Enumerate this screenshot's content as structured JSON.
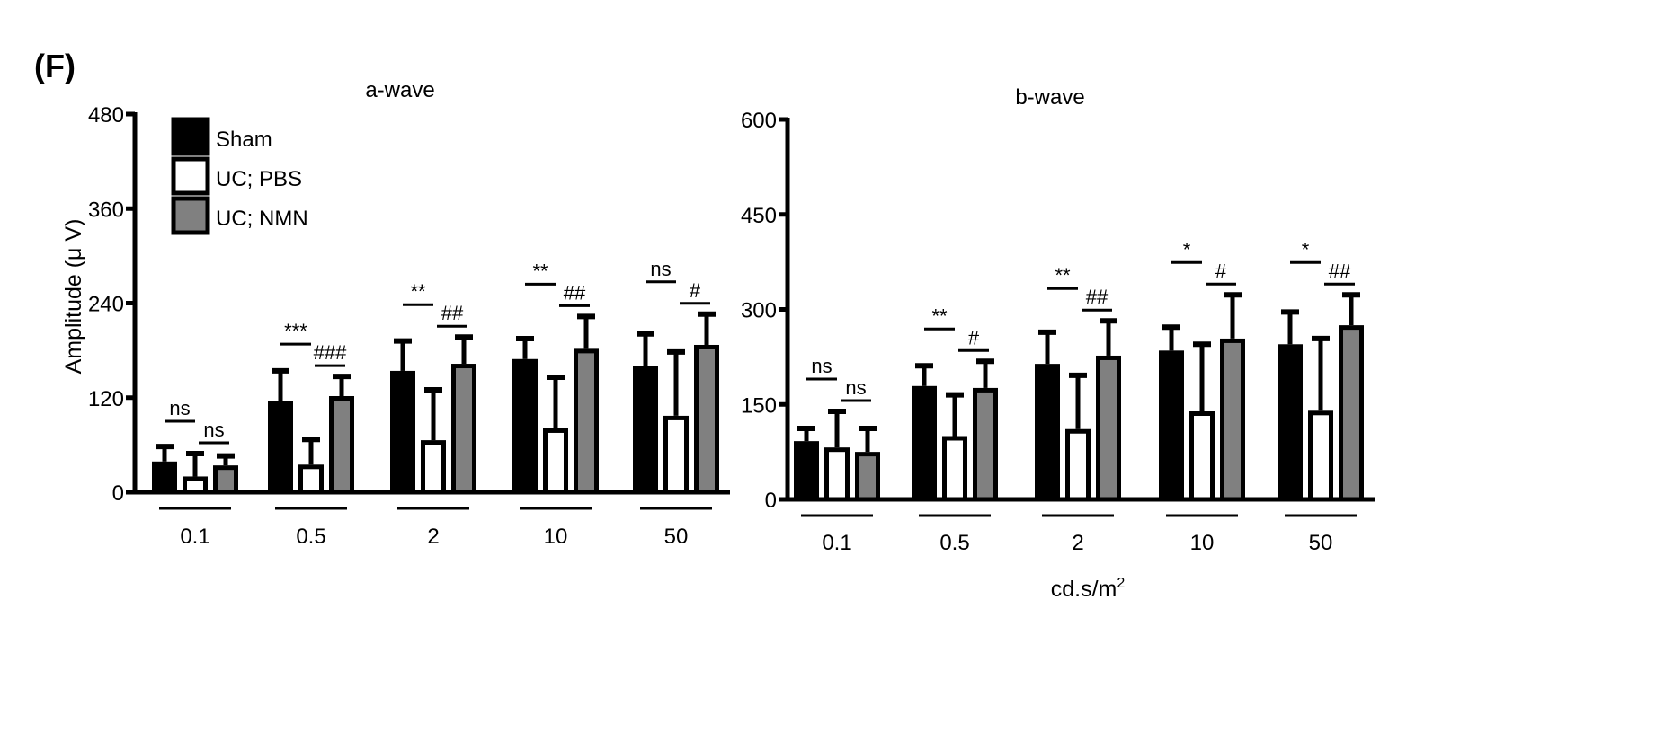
{
  "panel_label": "(F)",
  "legend": [
    {
      "name": "Sham",
      "color": "#000000"
    },
    {
      "name": "UC; PBS",
      "color": "#ffffff"
    },
    {
      "name": "UC; NMN",
      "color": "#808080"
    }
  ],
  "shared_xlabel": "cd.s/m",
  "shared_xlabel_sup": "2",
  "chart_data": [
    {
      "type": "bar",
      "title": "a-wave",
      "ylabel": "Amplitude (μ V)",
      "ylim": [
        0,
        480
      ],
      "yticks": [
        0,
        120,
        240,
        360,
        480
      ],
      "categories": [
        "0.1",
        "0.5",
        "2",
        "10",
        "50"
      ],
      "series": [
        {
          "name": "Sham",
          "values": [
            39,
            116,
            154,
            169,
            160
          ],
          "error": [
            19,
            38,
            38,
            26,
            41
          ]
        },
        {
          "name": "UC; PBS",
          "values": [
            20,
            35,
            66,
            81,
            97
          ],
          "error": [
            29,
            32,
            64,
            65,
            81
          ]
        },
        {
          "name": "UC; NMN",
          "values": [
            34,
            122,
            163,
            182,
            187
          ],
          "error": [
            12,
            25,
            34,
            41,
            39
          ]
        }
      ],
      "annotations": [
        {
          "category": "0.1",
          "sham_vs_pbs": "ns",
          "pbs_vs_nmn": "ns"
        },
        {
          "category": "0.5",
          "sham_vs_pbs": "***",
          "pbs_vs_nmn": "###"
        },
        {
          "category": "2",
          "sham_vs_pbs": "**",
          "pbs_vs_nmn": "##"
        },
        {
          "category": "10",
          "sham_vs_pbs": "**",
          "pbs_vs_nmn": "##"
        },
        {
          "category": "50",
          "sham_vs_pbs": "ns",
          "pbs_vs_nmn": "#"
        }
      ],
      "legend": "top-left"
    },
    {
      "type": "bar",
      "title": "b-wave",
      "ylim": [
        0,
        600
      ],
      "yticks": [
        0,
        150,
        300,
        450,
        600
      ],
      "categories": [
        "0.1",
        "0.5",
        "2",
        "10",
        "50"
      ],
      "series": [
        {
          "name": "Sham",
          "values": [
            92,
            179,
            214,
            235,
            245
          ],
          "error": [
            20,
            32,
            50,
            37,
            51
          ]
        },
        {
          "name": "UC; PBS",
          "values": [
            82,
            100,
            111,
            139,
            140
          ],
          "error": [
            57,
            65,
            85,
            106,
            114
          ]
        },
        {
          "name": "UC; NMN",
          "values": [
            75,
            176,
            227,
            254,
            275
          ],
          "error": [
            37,
            42,
            55,
            69,
            48
          ]
        }
      ],
      "annotations": [
        {
          "category": "0.1",
          "sham_vs_pbs": "ns",
          "pbs_vs_nmn": "ns"
        },
        {
          "category": "0.5",
          "sham_vs_pbs": "**",
          "pbs_vs_nmn": "#"
        },
        {
          "category": "2",
          "sham_vs_pbs": "**",
          "pbs_vs_nmn": "##"
        },
        {
          "category": "10",
          "sham_vs_pbs": "*",
          "pbs_vs_nmn": "#"
        },
        {
          "category": "50",
          "sham_vs_pbs": "*",
          "pbs_vs_nmn": "##"
        }
      ]
    }
  ]
}
